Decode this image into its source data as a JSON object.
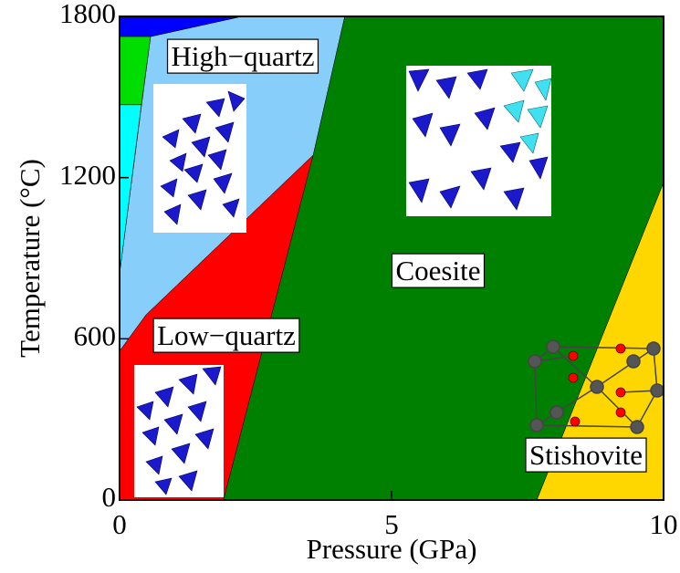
{
  "chart_data": {
    "type": "area",
    "x_label": "Pressure (GPa)",
    "y_label": "Temperature (°C)",
    "xlim": [
      0,
      10
    ],
    "xticks": [
      0,
      5,
      10
    ],
    "ylim": [
      0,
      1800
    ],
    "yticks": [
      0,
      600,
      1200,
      1800
    ],
    "regions": [
      {
        "label": "High−quartz",
        "color": "#87cefa",
        "x": [
          0,
          0.49,
          3.56,
          4.14,
          2.25,
          0.57,
          0
        ],
        "y": [
          554,
          690,
          1284,
          1800,
          1800,
          1725,
          842
        ]
      },
      {
        "label": "Low−quartz",
        "color": "#ff0000",
        "x": [
          0,
          1.91,
          3.56,
          0.49,
          0
        ],
        "y": [
          0,
          0,
          1284,
          690,
          554
        ]
      },
      {
        "label": "Coesite",
        "color": "#008000",
        "x": [
          4.14,
          10,
          10,
          7.67,
          1.91,
          3.56
        ],
        "y": [
          1800,
          1800,
          1182,
          0,
          0,
          1284
        ]
      },
      {
        "label": "Stishovite",
        "color": "#ffd700",
        "x": [
          7.67,
          10,
          10
        ],
        "y": [
          0,
          1182,
          0
        ]
      },
      {
        "color": "#0000ff",
        "x": [
          0,
          2.25,
          0.57,
          0
        ],
        "y": [
          1800,
          1800,
          1725,
          1725
        ]
      },
      {
        "color": "#00dd00",
        "x": [
          0,
          0.57,
          0.4,
          0
        ],
        "y": [
          1725,
          1725,
          1471,
          1471
        ]
      },
      {
        "color": "#00ffff",
        "x": [
          0,
          0.4,
          0
        ],
        "y": [
          1471,
          1471,
          842
        ]
      }
    ]
  }
}
